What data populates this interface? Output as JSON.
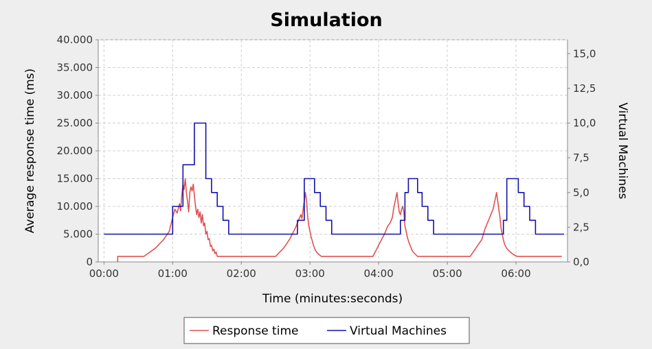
{
  "chart_data": {
    "type": "line",
    "title": "Simulation",
    "xlabel": "Time (minutes:seconds)",
    "ylabel": "Average response time (ms)",
    "y2label": "Virtual Machines",
    "xlim": [
      -5,
      405
    ],
    "ylim": [
      0,
      40000
    ],
    "y2lim": [
      0,
      16
    ],
    "x_ticks": [
      {
        "value": 0,
        "label": "00:00"
      },
      {
        "value": 60,
        "label": "01:00"
      },
      {
        "value": 120,
        "label": "02:00"
      },
      {
        "value": 180,
        "label": "03:00"
      },
      {
        "value": 240,
        "label": "04:00"
      },
      {
        "value": 300,
        "label": "05:00"
      },
      {
        "value": 360,
        "label": "06:00"
      }
    ],
    "y_ticks": [
      {
        "value": 0,
        "label": "0"
      },
      {
        "value": 5000,
        "label": "5.000"
      },
      {
        "value": 10000,
        "label": "10.000"
      },
      {
        "value": 15000,
        "label": "15.000"
      },
      {
        "value": 20000,
        "label": "20.000"
      },
      {
        "value": 25000,
        "label": "25.000"
      },
      {
        "value": 30000,
        "label": "30.000"
      },
      {
        "value": 35000,
        "label": "35.000"
      },
      {
        "value": 40000,
        "label": "40.000"
      }
    ],
    "y2_ticks": [
      {
        "value": 0,
        "label": "0,0"
      },
      {
        "value": 2.5,
        "label": "2,5"
      },
      {
        "value": 5,
        "label": "5,0"
      },
      {
        "value": 7.5,
        "label": "7,5"
      },
      {
        "value": 10,
        "label": "10,0"
      },
      {
        "value": 12.5,
        "label": "12,5"
      },
      {
        "value": 15,
        "label": "15,0"
      }
    ],
    "grid": true,
    "legend_position": "bottom",
    "series": [
      {
        "name": "Response time",
        "axis": "left",
        "color": "#e05050",
        "step": false,
        "points": [
          [
            12,
            0
          ],
          [
            12,
            1000
          ],
          [
            20,
            1000
          ],
          [
            35,
            1000
          ],
          [
            45,
            2500
          ],
          [
            52,
            4000
          ],
          [
            57,
            5500
          ],
          [
            60,
            8000
          ],
          [
            62,
            9500
          ],
          [
            64,
            8800
          ],
          [
            66,
            10500
          ],
          [
            67,
            9200
          ],
          [
            68,
            12000
          ],
          [
            69,
            14000
          ],
          [
            70,
            13000
          ],
          [
            71,
            15000
          ],
          [
            72,
            12500
          ],
          [
            73,
            11000
          ],
          [
            74,
            9000
          ],
          [
            75,
            12500
          ],
          [
            76,
            13500
          ],
          [
            77,
            12800
          ],
          [
            78,
            14000
          ],
          [
            79,
            12000
          ],
          [
            80,
            10000
          ],
          [
            81,
            8500
          ],
          [
            82,
            9500
          ],
          [
            83,
            8000
          ],
          [
            84,
            9000
          ],
          [
            85,
            7000
          ],
          [
            86,
            8500
          ],
          [
            87,
            6500
          ],
          [
            88,
            7000
          ],
          [
            89,
            5000
          ],
          [
            90,
            5500
          ],
          [
            91,
            4000
          ],
          [
            92,
            4200
          ],
          [
            93,
            2800
          ],
          [
            94,
            3000
          ],
          [
            95,
            2000
          ],
          [
            96,
            2300
          ],
          [
            97,
            1500
          ],
          [
            98,
            1800
          ],
          [
            99,
            1000
          ],
          [
            110,
            1000
          ],
          [
            140,
            1000
          ],
          [
            150,
            1000
          ],
          [
            157,
            2500
          ],
          [
            162,
            4000
          ],
          [
            167,
            6000
          ],
          [
            170,
            7500
          ],
          [
            172,
            8500
          ],
          [
            173,
            7800
          ],
          [
            174,
            9500
          ],
          [
            175,
            11000
          ],
          [
            176,
            12500
          ],
          [
            177,
            11000
          ],
          [
            178,
            8000
          ],
          [
            179,
            6500
          ],
          [
            180,
            5500
          ],
          [
            181,
            4500
          ],
          [
            182,
            3800
          ],
          [
            183,
            3000
          ],
          [
            184,
            2500
          ],
          [
            185,
            2000
          ],
          [
            186,
            1700
          ],
          [
            188,
            1300
          ],
          [
            190,
            1000
          ],
          [
            230,
            1000
          ],
          [
            235,
            1000
          ],
          [
            240,
            3000
          ],
          [
            245,
            5000
          ],
          [
            248,
            6500
          ],
          [
            250,
            7000
          ],
          [
            252,
            8000
          ],
          [
            253,
            9500
          ],
          [
            254,
            10500
          ],
          [
            255,
            11500
          ],
          [
            256,
            12500
          ],
          [
            257,
            10500
          ],
          [
            258,
            9000
          ],
          [
            259,
            8500
          ],
          [
            260,
            9500
          ],
          [
            261,
            10000
          ],
          [
            262,
            9000
          ],
          [
            263,
            6500
          ],
          [
            264,
            5500
          ],
          [
            265,
            4500
          ],
          [
            266,
            3800
          ],
          [
            267,
            3200
          ],
          [
            268,
            2700
          ],
          [
            269,
            2200
          ],
          [
            270,
            1800
          ],
          [
            272,
            1400
          ],
          [
            274,
            1000
          ],
          [
            295,
            1000
          ],
          [
            320,
            1000
          ],
          [
            330,
            4000
          ],
          [
            333,
            6000
          ],
          [
            336,
            7500
          ],
          [
            338,
            8500
          ],
          [
            340,
            9500
          ],
          [
            341,
            10500
          ],
          [
            342,
            11500
          ],
          [
            343,
            12500
          ],
          [
            344,
            11000
          ],
          [
            345,
            9500
          ],
          [
            346,
            8000
          ],
          [
            347,
            6000
          ],
          [
            348,
            5000
          ],
          [
            349,
            4000
          ],
          [
            350,
            3200
          ],
          [
            351,
            2800
          ],
          [
            352,
            2400
          ],
          [
            354,
            2000
          ],
          [
            356,
            1600
          ],
          [
            358,
            1300
          ],
          [
            361,
            1000
          ],
          [
            400,
            1000
          ]
        ]
      },
      {
        "name": "Virtual Machines",
        "axis": "right",
        "color": "#1010aa",
        "step": true,
        "points": [
          [
            0,
            2
          ],
          [
            60,
            2
          ],
          [
            60,
            4
          ],
          [
            69,
            4
          ],
          [
            69,
            7
          ],
          [
            79,
            7
          ],
          [
            79,
            10
          ],
          [
            89,
            10
          ],
          [
            89,
            6
          ],
          [
            94,
            6
          ],
          [
            94,
            5
          ],
          [
            99,
            5
          ],
          [
            99,
            4
          ],
          [
            104,
            4
          ],
          [
            104,
            3
          ],
          [
            109,
            3
          ],
          [
            109,
            2
          ],
          [
            169,
            2
          ],
          [
            169,
            3
          ],
          [
            175,
            3
          ],
          [
            175,
            6
          ],
          [
            184,
            6
          ],
          [
            184,
            5
          ],
          [
            189,
            5
          ],
          [
            189,
            4
          ],
          [
            194,
            4
          ],
          [
            194,
            3
          ],
          [
            199,
            3
          ],
          [
            199,
            2
          ],
          [
            259,
            2
          ],
          [
            259,
            3
          ],
          [
            263,
            3
          ],
          [
            263,
            5
          ],
          [
            266,
            5
          ],
          [
            266,
            6
          ],
          [
            274,
            6
          ],
          [
            274,
            5
          ],
          [
            278,
            5
          ],
          [
            278,
            4
          ],
          [
            283,
            4
          ],
          [
            283,
            3
          ],
          [
            288,
            3
          ],
          [
            288,
            2
          ],
          [
            349,
            2
          ],
          [
            349,
            3
          ],
          [
            352,
            3
          ],
          [
            352,
            6
          ],
          [
            362,
            6
          ],
          [
            362,
            5
          ],
          [
            367,
            5
          ],
          [
            367,
            4
          ],
          [
            372,
            4
          ],
          [
            372,
            3
          ],
          [
            377,
            3
          ],
          [
            377,
            2
          ],
          [
            402,
            2
          ]
        ]
      }
    ]
  }
}
